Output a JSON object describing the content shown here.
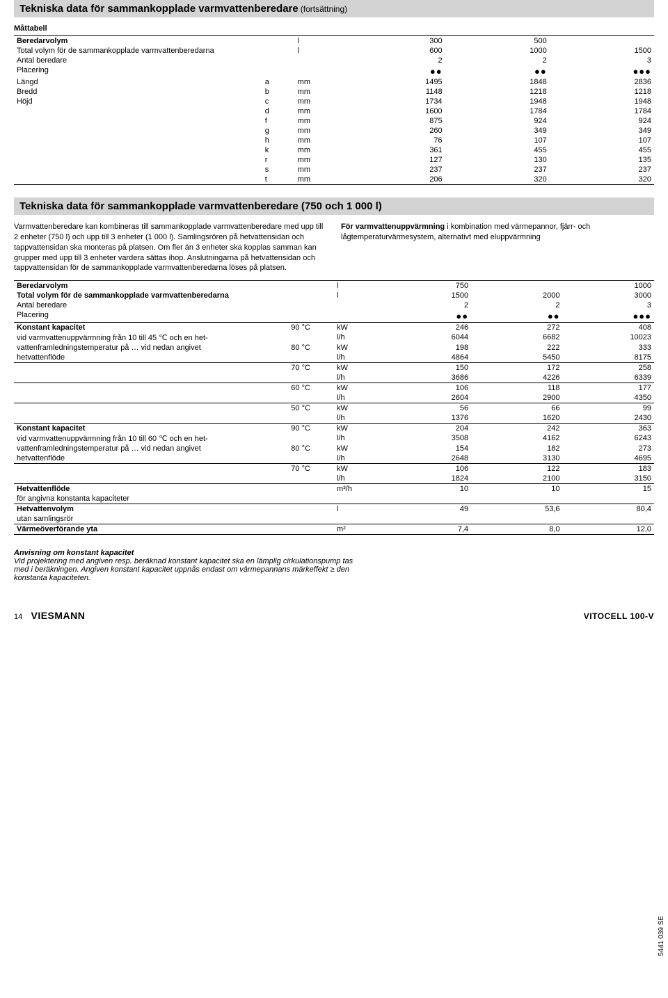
{
  "header1": {
    "title": "Tekniska data för sammankopplade varmvattenberedare",
    "suffix": "(fortsättning)"
  },
  "dimTable": {
    "title": "Måttabell",
    "rows": [
      {
        "label": "Beredarvolym",
        "k": "",
        "u": "l",
        "v": [
          "300",
          "500",
          ""
        ],
        "bold": true
      },
      {
        "label": "Total volym för de sammankopplade varmvattenberedarna",
        "k": "",
        "u": "l",
        "v": [
          "600",
          "1000",
          "1500"
        ]
      },
      {
        "label": "Antal beredare",
        "k": "",
        "u": "",
        "v": [
          "2",
          "2",
          "3"
        ]
      },
      {
        "label": "Placering",
        "k": "",
        "u": "",
        "v": [
          "●●",
          "●●",
          "●●●"
        ],
        "dots": true
      },
      {
        "label": "Längd",
        "k": "a",
        "u": "mm",
        "v": [
          "1495",
          "1848",
          "2836"
        ]
      },
      {
        "label": "Bredd",
        "k": "b",
        "u": "mm",
        "v": [
          "1148",
          "1218",
          "1218"
        ]
      },
      {
        "label": "Höjd",
        "k": "c",
        "u": "mm",
        "v": [
          "1734",
          "1948",
          "1948"
        ]
      },
      {
        "label": "",
        "k": "d",
        "u": "mm",
        "v": [
          "1600",
          "1784",
          "1784"
        ]
      },
      {
        "label": "",
        "k": "f",
        "u": "mm",
        "v": [
          "875",
          "924",
          "924"
        ]
      },
      {
        "label": "",
        "k": "g",
        "u": "mm",
        "v": [
          "260",
          "349",
          "349"
        ]
      },
      {
        "label": "",
        "k": "h",
        "u": "mm",
        "v": [
          "76",
          "107",
          "107"
        ]
      },
      {
        "label": "",
        "k": "k",
        "u": "mm",
        "v": [
          "361",
          "455",
          "455"
        ]
      },
      {
        "label": "",
        "k": "r",
        "u": "mm",
        "v": [
          "127",
          "130",
          "135"
        ]
      },
      {
        "label": "",
        "k": "s",
        "u": "mm",
        "v": [
          "237",
          "237",
          "237"
        ]
      },
      {
        "label": "",
        "k": "t",
        "u": "mm",
        "v": [
          "206",
          "320",
          "320"
        ]
      }
    ]
  },
  "header2": "Tekniska data för sammankopplade varmvattenberedare (750 och 1 000 l)",
  "colL": "Varmvattenberedare kan kombineras till sammankopplade varmvattenberedare med upp till 2 enheter (750 l) och upp till 3 enheter (1 000 l). Samlingsrören på hetvattensidan och tappvattensidan ska monteras på platsen.\nOm fler än 3 enheter ska kopplas samman kan grupper med upp till 3 enheter vardera sättas ihop. Anslutningarna på hetvattensidan och tappvattensidan för de sammankopplade varmvattenberedarna löses på platsen.",
  "colRBold": "För varmvattenuppvärmning",
  "colR": " i kombination med värmepannor, fjärr- och lågtemperaturvärmesystem, alternativt med eluppvärmning",
  "specTable": {
    "rows": [
      {
        "l": "Beredarvolym",
        "s1": "",
        "s2": "l",
        "v": [
          "750",
          "",
          "1000"
        ],
        "bt": true,
        "bold": true
      },
      {
        "l": "Total volym för de sammankopplade varmvattenberedarna",
        "s1": "",
        "s2": "l",
        "v": [
          "1500",
          "2000",
          "3000"
        ],
        "bold": true
      },
      {
        "l": "Antal beredare",
        "s1": "",
        "s2": "",
        "v": [
          "2",
          "2",
          "3"
        ]
      },
      {
        "l": "Placering",
        "s1": "",
        "s2": "",
        "v": [
          "●●",
          "●●",
          "●●●"
        ],
        "dots": true,
        "bb": true
      },
      {
        "l": "Konstant kapacitet",
        "s1": "90 °C",
        "s2": "kW",
        "v": [
          "246",
          "272",
          "408"
        ],
        "bold": true,
        "ital": false
      },
      {
        "l": "vid varmvattenuppvärmning från 10 till 45 ℃ och en het-",
        "s1": "",
        "s2": "l/h",
        "v": [
          "6044",
          "6682",
          "10023"
        ]
      },
      {
        "l": "vattenframledningstemperatur på … vid nedan angivet",
        "s1": "80 °C",
        "s2": "kW",
        "v": [
          "198",
          "222",
          "333"
        ]
      },
      {
        "l": "hetvattenflöde",
        "s1": "",
        "s2": "l/h",
        "v": [
          "4864",
          "5450",
          "8175"
        ],
        "bb": true
      },
      {
        "l": "",
        "s1": "70 °C",
        "s2": "kW",
        "v": [
          "150",
          "172",
          "258"
        ]
      },
      {
        "l": "",
        "s1": "",
        "s2": "l/h",
        "v": [
          "3686",
          "4226",
          "6339"
        ],
        "bb": true
      },
      {
        "l": "",
        "s1": "60 °C",
        "s2": "kW",
        "v": [
          "106",
          "118",
          "177"
        ]
      },
      {
        "l": "",
        "s1": "",
        "s2": "l/h",
        "v": [
          "2604",
          "2900",
          "4350"
        ],
        "bb": true
      },
      {
        "l": "",
        "s1": "50 °C",
        "s2": "kW",
        "v": [
          "56",
          "66",
          "99"
        ]
      },
      {
        "l": "",
        "s1": "",
        "s2": "l/h",
        "v": [
          "1376",
          "1620",
          "2430"
        ],
        "bb": true
      },
      {
        "l": "Konstant kapacitet",
        "s1": "90 °C",
        "s2": "kW",
        "v": [
          "204",
          "242",
          "363"
        ],
        "bold": true
      },
      {
        "l": "vid varmvattenuppvärmning från 10 till 60 ℃ och en het-",
        "s1": "",
        "s2": "l/h",
        "v": [
          "3508",
          "4162",
          "6243"
        ]
      },
      {
        "l": "vattenframledningstemperatur på … vid nedan angivet",
        "s1": "80 °C",
        "s2": "kW",
        "v": [
          "154",
          "182",
          "273"
        ]
      },
      {
        "l": "hetvattenflöde",
        "s1": "",
        "s2": "l/h",
        "v": [
          "2648",
          "3130",
          "4695"
        ],
        "bb": true
      },
      {
        "l": "",
        "s1": "70 °C",
        "s2": "kW",
        "v": [
          "106",
          "122",
          "183"
        ]
      },
      {
        "l": "",
        "s1": "",
        "s2": "l/h",
        "v": [
          "1824",
          "2100",
          "3150"
        ],
        "bb": true
      },
      {
        "l": "Hetvattenflöde",
        "s1": "",
        "s2": "m³/h",
        "v": [
          "10",
          "10",
          "15"
        ],
        "bold": true
      },
      {
        "l": "för angivna konstanta kapaciteter",
        "s1": "",
        "s2": "",
        "v": [
          "",
          "",
          ""
        ],
        "bb": true
      },
      {
        "l": "Hetvattenvolym",
        "s1": "",
        "s2": "l",
        "v": [
          "49",
          "53,6",
          "80,4"
        ],
        "bold": true
      },
      {
        "l": "utan samlingsrör",
        "s1": "",
        "s2": "",
        "v": [
          "",
          "",
          ""
        ],
        "bb": true
      },
      {
        "l": "Värmeöverförande yta",
        "s1": "",
        "s2": "m²",
        "v": [
          "7,4",
          "8,0",
          "12,0"
        ],
        "bold": true,
        "bb": true
      }
    ]
  },
  "note": {
    "title": "Anvisning om konstant kapacitet",
    "body": "Vid projektering med angiven resp. beräknad konstant kapacitet ska en lämplig cirkulationspump tas med i beräkningen. Angiven konstant kapacitet uppnås endast om värmepannans märkeffekt ≥ den konstanta kapaciteten."
  },
  "footer": {
    "page": "14",
    "logo": "VIESMANN",
    "brand": "VITOCELL 100-V"
  },
  "sideCode": "5441 039 SE"
}
